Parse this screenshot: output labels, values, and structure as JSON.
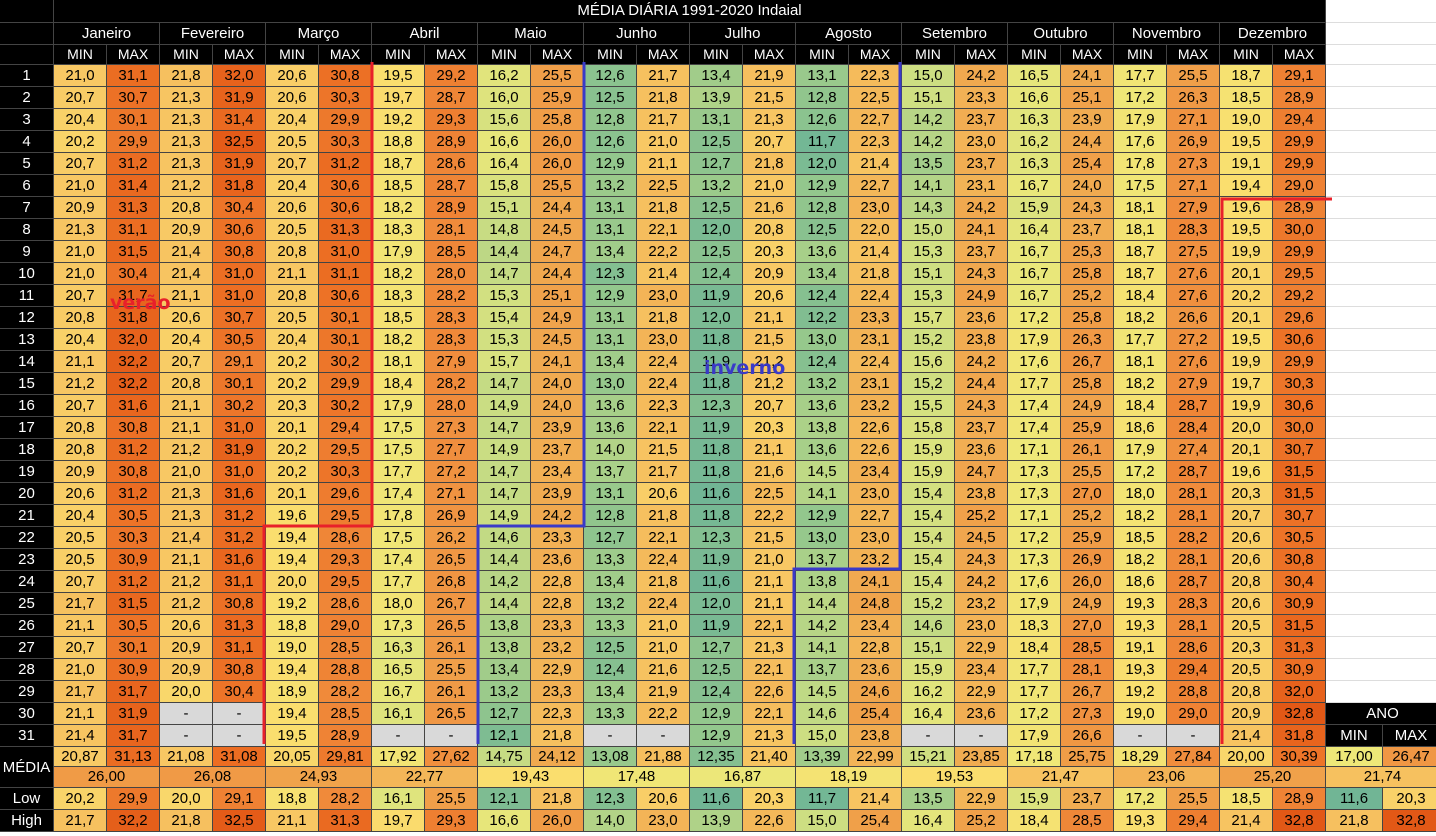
{
  "title": "MÉDIA DIÁRIA 1991-2020 Indaial",
  "months": [
    "Janeiro",
    "Fevereiro",
    "Março",
    "Abril",
    "Maio",
    "Junho",
    "Julho",
    "Agosto",
    "Setembro",
    "Outubro",
    "Novembro",
    "Dezembro"
  ],
  "min_label": "MIN",
  "max_label": "MAX",
  "rows": [
    [
      "1",
      "21,0",
      "31,1",
      "21,8",
      "32,0",
      "20,6",
      "30,8",
      "19,5",
      "29,2",
      "16,2",
      "25,5",
      "12,6",
      "21,7",
      "13,4",
      "21,9",
      "13,1",
      "22,3",
      "15,0",
      "24,2",
      "16,5",
      "24,1",
      "17,7",
      "25,5",
      "18,7",
      "29,1"
    ],
    [
      "2",
      "20,7",
      "30,7",
      "21,3",
      "31,9",
      "20,6",
      "30,3",
      "19,7",
      "28,7",
      "16,0",
      "25,9",
      "12,5",
      "21,8",
      "13,9",
      "21,5",
      "12,8",
      "22,5",
      "15,1",
      "23,3",
      "16,6",
      "25,1",
      "17,2",
      "26,3",
      "18,5",
      "28,9"
    ],
    [
      "3",
      "20,4",
      "30,1",
      "21,3",
      "31,4",
      "20,4",
      "29,9",
      "19,2",
      "29,3",
      "15,6",
      "25,8",
      "12,8",
      "21,7",
      "13,1",
      "21,3",
      "12,6",
      "22,7",
      "14,2",
      "23,7",
      "16,3",
      "23,9",
      "17,9",
      "27,1",
      "19,0",
      "29,4"
    ],
    [
      "4",
      "20,2",
      "29,9",
      "21,3",
      "32,5",
      "20,5",
      "30,3",
      "18,8",
      "28,9",
      "16,6",
      "26,0",
      "12,6",
      "21,0",
      "12,5",
      "20,7",
      "11,7",
      "22,3",
      "14,2",
      "23,0",
      "16,2",
      "24,4",
      "17,6",
      "26,9",
      "19,5",
      "29,9"
    ],
    [
      "5",
      "20,7",
      "31,2",
      "21,3",
      "31,9",
      "20,7",
      "31,2",
      "18,7",
      "28,6",
      "16,4",
      "26,0",
      "12,9",
      "21,1",
      "12,7",
      "21,8",
      "12,0",
      "21,4",
      "13,5",
      "23,7",
      "16,3",
      "25,4",
      "17,8",
      "27,3",
      "19,1",
      "29,9"
    ],
    [
      "6",
      "21,0",
      "31,4",
      "21,2",
      "31,8",
      "20,4",
      "30,6",
      "18,5",
      "28,7",
      "15,8",
      "25,5",
      "13,2",
      "22,5",
      "13,2",
      "21,0",
      "12,9",
      "22,7",
      "14,1",
      "23,1",
      "16,7",
      "24,0",
      "17,5",
      "27,1",
      "19,4",
      "29,0"
    ],
    [
      "7",
      "20,9",
      "31,3",
      "20,8",
      "30,4",
      "20,6",
      "30,6",
      "18,2",
      "28,9",
      "15,1",
      "24,4",
      "13,1",
      "21,8",
      "12,5",
      "21,6",
      "12,8",
      "23,0",
      "14,3",
      "24,2",
      "15,9",
      "24,3",
      "18,1",
      "27,9",
      "19,6",
      "28,9"
    ],
    [
      "8",
      "21,3",
      "31,1",
      "20,9",
      "30,6",
      "20,5",
      "31,3",
      "18,3",
      "28,1",
      "14,8",
      "24,5",
      "13,1",
      "22,1",
      "12,0",
      "20,8",
      "12,5",
      "22,0",
      "15,0",
      "24,1",
      "16,4",
      "23,7",
      "18,1",
      "28,3",
      "19,5",
      "30,0"
    ],
    [
      "9",
      "21,0",
      "31,5",
      "21,4",
      "30,8",
      "20,8",
      "31,0",
      "17,9",
      "28,5",
      "14,4",
      "24,7",
      "13,4",
      "22,2",
      "12,5",
      "20,3",
      "13,6",
      "21,4",
      "15,3",
      "23,7",
      "16,7",
      "25,3",
      "18,7",
      "27,5",
      "19,9",
      "29,9"
    ],
    [
      "10",
      "21,0",
      "30,4",
      "21,4",
      "31,0",
      "21,1",
      "31,1",
      "18,2",
      "28,0",
      "14,7",
      "24,4",
      "12,3",
      "21,4",
      "12,4",
      "20,9",
      "13,4",
      "21,8",
      "15,1",
      "24,3",
      "16,7",
      "25,8",
      "18,7",
      "27,6",
      "20,1",
      "29,5"
    ],
    [
      "11",
      "20,7",
      "31,7",
      "21,1",
      "31,0",
      "20,8",
      "30,6",
      "18,3",
      "28,2",
      "15,3",
      "25,1",
      "12,9",
      "23,0",
      "11,9",
      "20,6",
      "12,4",
      "22,4",
      "15,3",
      "24,9",
      "16,7",
      "25,2",
      "18,4",
      "27,6",
      "20,2",
      "29,2"
    ],
    [
      "12",
      "20,8",
      "31,8",
      "20,6",
      "30,7",
      "20,5",
      "30,1",
      "18,5",
      "28,3",
      "15,4",
      "24,9",
      "13,1",
      "21,8",
      "12,0",
      "21,1",
      "12,2",
      "23,3",
      "15,7",
      "23,6",
      "17,2",
      "25,8",
      "18,2",
      "26,6",
      "20,1",
      "29,6"
    ],
    [
      "13",
      "20,4",
      "32,0",
      "20,4",
      "30,5",
      "20,4",
      "30,1",
      "18,2",
      "28,3",
      "15,3",
      "24,5",
      "13,1",
      "23,0",
      "11,8",
      "21,5",
      "13,0",
      "23,1",
      "15,2",
      "23,8",
      "17,9",
      "26,3",
      "17,7",
      "27,2",
      "19,5",
      "30,6"
    ],
    [
      "14",
      "21,1",
      "32,2",
      "20,7",
      "29,1",
      "20,2",
      "30,2",
      "18,1",
      "27,9",
      "15,7",
      "24,1",
      "13,4",
      "22,4",
      "11,9",
      "21,2",
      "12,4",
      "22,4",
      "15,6",
      "24,2",
      "17,6",
      "26,7",
      "18,1",
      "27,6",
      "19,9",
      "29,9"
    ],
    [
      "15",
      "21,2",
      "32,2",
      "20,8",
      "30,1",
      "20,2",
      "29,9",
      "18,4",
      "28,2",
      "14,7",
      "24,0",
      "13,0",
      "22,4",
      "11,8",
      "21,2",
      "13,2",
      "23,1",
      "15,2",
      "24,4",
      "17,7",
      "25,8",
      "18,2",
      "27,9",
      "19,7",
      "30,3"
    ],
    [
      "16",
      "20,7",
      "31,6",
      "21,1",
      "30,2",
      "20,3",
      "30,2",
      "17,9",
      "28,0",
      "14,9",
      "24,0",
      "13,6",
      "22,3",
      "12,3",
      "20,7",
      "13,6",
      "23,2",
      "15,5",
      "24,3",
      "17,4",
      "24,9",
      "18,4",
      "28,7",
      "19,9",
      "30,6"
    ],
    [
      "17",
      "20,8",
      "30,8",
      "21,1",
      "31,0",
      "20,1",
      "29,4",
      "17,5",
      "27,3",
      "14,7",
      "23,9",
      "13,6",
      "22,1",
      "11,9",
      "20,3",
      "13,8",
      "22,6",
      "15,8",
      "23,7",
      "17,4",
      "25,9",
      "18,6",
      "28,4",
      "20,0",
      "30,0"
    ],
    [
      "18",
      "20,8",
      "31,2",
      "21,2",
      "31,9",
      "20,2",
      "29,5",
      "17,5",
      "27,7",
      "14,9",
      "23,7",
      "14,0",
      "21,5",
      "11,8",
      "21,1",
      "13,6",
      "22,6",
      "15,9",
      "23,6",
      "17,1",
      "26,1",
      "17,9",
      "27,4",
      "20,1",
      "30,7"
    ],
    [
      "19",
      "20,9",
      "30,8",
      "21,0",
      "31,0",
      "20,2",
      "30,3",
      "17,7",
      "27,2",
      "14,7",
      "23,4",
      "13,7",
      "21,7",
      "11,8",
      "21,6",
      "14,5",
      "23,4",
      "15,9",
      "24,7",
      "17,3",
      "25,5",
      "17,2",
      "28,7",
      "19,6",
      "31,5"
    ],
    [
      "20",
      "20,6",
      "31,2",
      "21,3",
      "31,6",
      "20,1",
      "29,6",
      "17,4",
      "27,1",
      "14,7",
      "23,9",
      "13,1",
      "20,6",
      "11,6",
      "22,5",
      "14,1",
      "23,0",
      "15,4",
      "23,8",
      "17,3",
      "27,0",
      "18,0",
      "28,1",
      "20,3",
      "31,5"
    ],
    [
      "21",
      "20,4",
      "30,5",
      "21,3",
      "31,2",
      "19,6",
      "29,5",
      "17,8",
      "26,9",
      "14,9",
      "24,2",
      "12,8",
      "21,8",
      "11,8",
      "22,2",
      "12,9",
      "22,7",
      "15,4",
      "25,2",
      "17,1",
      "25,2",
      "18,2",
      "28,1",
      "20,7",
      "30,7"
    ],
    [
      "22",
      "20,5",
      "30,3",
      "21,4",
      "31,2",
      "19,4",
      "28,6",
      "17,5",
      "26,2",
      "14,6",
      "23,3",
      "12,7",
      "22,1",
      "12,3",
      "21,5",
      "13,0",
      "23,0",
      "15,4",
      "24,5",
      "17,2",
      "25,9",
      "18,5",
      "28,2",
      "20,6",
      "30,5"
    ],
    [
      "23",
      "20,5",
      "30,9",
      "21,1",
      "31,6",
      "19,4",
      "29,3",
      "17,4",
      "26,5",
      "14,4",
      "23,6",
      "13,3",
      "22,4",
      "11,9",
      "21,0",
      "13,7",
      "23,2",
      "15,4",
      "24,3",
      "17,3",
      "26,9",
      "18,2",
      "28,1",
      "20,6",
      "30,8"
    ],
    [
      "24",
      "20,7",
      "31,2",
      "21,2",
      "31,1",
      "20,0",
      "29,5",
      "17,7",
      "26,8",
      "14,2",
      "22,8",
      "13,4",
      "21,8",
      "11,6",
      "21,1",
      "13,8",
      "24,1",
      "15,4",
      "24,2",
      "17,6",
      "26,0",
      "18,6",
      "28,7",
      "20,8",
      "30,4"
    ],
    [
      "25",
      "21,7",
      "31,5",
      "21,2",
      "30,8",
      "19,2",
      "28,6",
      "18,0",
      "26,7",
      "14,4",
      "22,8",
      "13,2",
      "22,4",
      "12,0",
      "21,1",
      "14,4",
      "24,8",
      "15,2",
      "23,2",
      "17,9",
      "24,9",
      "19,3",
      "28,3",
      "20,6",
      "30,9"
    ],
    [
      "26",
      "21,1",
      "30,5",
      "20,6",
      "31,3",
      "18,8",
      "29,0",
      "17,3",
      "26,5",
      "13,8",
      "23,3",
      "13,3",
      "21,0",
      "11,9",
      "22,1",
      "14,2",
      "23,4",
      "14,6",
      "23,0",
      "18,3",
      "27,0",
      "19,3",
      "28,1",
      "20,5",
      "31,5"
    ],
    [
      "27",
      "20,7",
      "30,1",
      "20,9",
      "31,1",
      "19,0",
      "28,5",
      "16,3",
      "26,1",
      "13,8",
      "23,2",
      "12,5",
      "21,0",
      "12,7",
      "21,3",
      "14,1",
      "22,8",
      "15,1",
      "22,9",
      "18,4",
      "28,5",
      "19,1",
      "28,6",
      "20,3",
      "31,3"
    ],
    [
      "28",
      "21,0",
      "30,9",
      "20,9",
      "30,8",
      "19,4",
      "28,8",
      "16,5",
      "25,5",
      "13,4",
      "22,9",
      "12,4",
      "21,6",
      "12,5",
      "22,1",
      "13,7",
      "23,6",
      "15,9",
      "23,4",
      "17,7",
      "28,1",
      "19,3",
      "29,4",
      "20,5",
      "30,9"
    ],
    [
      "29",
      "21,7",
      "31,7",
      "20,0",
      "30,4",
      "18,9",
      "28,2",
      "16,7",
      "26,1",
      "13,2",
      "23,3",
      "13,4",
      "21,9",
      "12,4",
      "22,6",
      "14,5",
      "24,6",
      "16,2",
      "22,9",
      "17,7",
      "26,7",
      "19,2",
      "28,8",
      "20,8",
      "32,0"
    ],
    [
      "30",
      "21,1",
      "31,9",
      "-",
      "-",
      "19,4",
      "28,5",
      "16,1",
      "26,5",
      "12,7",
      "22,3",
      "13,3",
      "22,2",
      "12,9",
      "22,1",
      "14,6",
      "25,4",
      "16,4",
      "23,6",
      "17,2",
      "27,3",
      "19,0",
      "29,0",
      "20,9",
      "32,8"
    ],
    [
      "31",
      "21,4",
      "31,7",
      "-",
      "-",
      "19,5",
      "28,9",
      "-",
      "-",
      "12,1",
      "21,8",
      "-",
      "-",
      "12,9",
      "21,3",
      "15,0",
      "23,8",
      "-",
      "-",
      "17,9",
      "26,6",
      "-",
      "-",
      "21,4",
      "31,8"
    ]
  ],
  "media_label": "MÉDIA",
  "media_row": [
    "20,87",
    "31,13",
    "21,08",
    "31,08",
    "20,05",
    "29,81",
    "17,92",
    "27,62",
    "14,75",
    "24,12",
    "13,08",
    "21,88",
    "12,35",
    "21,40",
    "13,39",
    "22,99",
    "15,21",
    "23,85",
    "17,18",
    "25,75",
    "18,29",
    "27,84",
    "20,00",
    "30,39"
  ],
  "media_month": [
    "26,00",
    "26,08",
    "24,93",
    "22,77",
    "19,43",
    "17,48",
    "16,87",
    "18,19",
    "19,53",
    "21,47",
    "23,06",
    "25,20"
  ],
  "low_label": "Low",
  "low_row": [
    "20,2",
    "29,9",
    "20,0",
    "29,1",
    "18,8",
    "28,2",
    "16,1",
    "25,5",
    "12,1",
    "21,8",
    "12,3",
    "20,6",
    "11,6",
    "20,3",
    "11,7",
    "21,4",
    "13,5",
    "22,9",
    "15,9",
    "23,7",
    "17,2",
    "25,5",
    "18,5",
    "28,9"
  ],
  "high_label": "High",
  "high_row": [
    "21,7",
    "32,2",
    "21,8",
    "32,5",
    "21,1",
    "31,3",
    "19,7",
    "29,3",
    "16,6",
    "26,0",
    "14,0",
    "23,0",
    "13,9",
    "22,6",
    "15,0",
    "25,4",
    "16,4",
    "25,2",
    "18,4",
    "28,5",
    "19,3",
    "29,4",
    "21,4",
    "32,8"
  ],
  "ano": {
    "label": "ANO",
    "min_label": "MIN",
    "max_label": "MAX",
    "min": "17,00",
    "max": "26,47",
    "mean": "21,74",
    "low_min": "11,6",
    "low_max": "20,3",
    "high_min": "21,8",
    "high_max": "32,8"
  },
  "annotations": {
    "summer": "verão",
    "winter": "inverno",
    "summer_color": "#e8202a",
    "winter_color": "#3a3ac8"
  }
}
